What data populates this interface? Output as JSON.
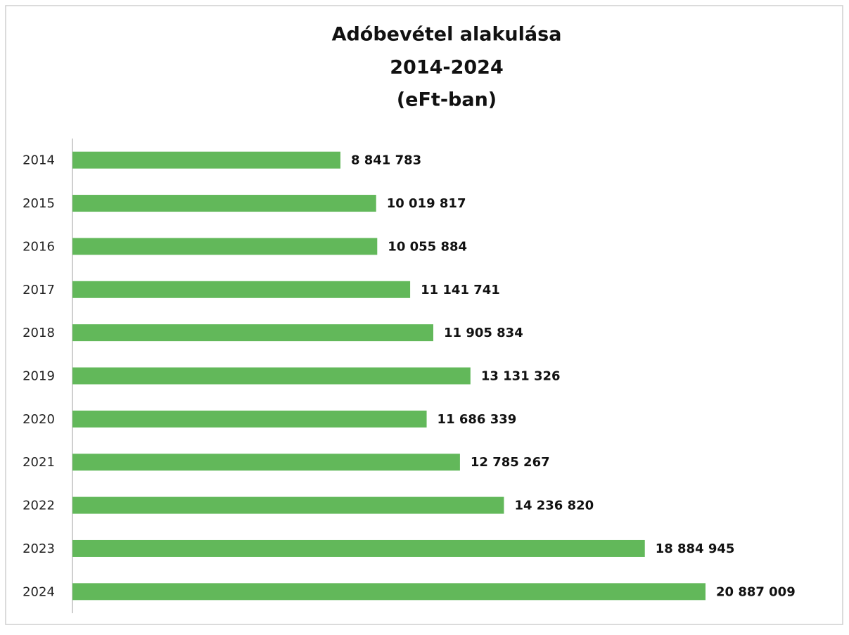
{
  "chart_data": {
    "type": "barh",
    "title": [
      "Adóbevétel alakulása",
      "2014-2024",
      "(eFt-ban)"
    ],
    "categories": [
      "2014",
      "2015",
      "2016",
      "2017",
      "2018",
      "2019",
      "2020",
      "2021",
      "2022",
      "2023",
      "2024"
    ],
    "values": [
      8841783,
      10019817,
      10055884,
      11141741,
      11905834,
      13131326,
      11686339,
      12785267,
      14236820,
      18884945,
      20887009
    ],
    "value_labels": [
      "8 841 783",
      "10 019 817",
      "10 055 884",
      "11 141 741",
      "11 905 834",
      "13 131 326",
      "11 686 339",
      "12 785 267",
      "14 236 820",
      "18 884 945",
      "20 887 009"
    ],
    "color": "#62b85a"
  }
}
